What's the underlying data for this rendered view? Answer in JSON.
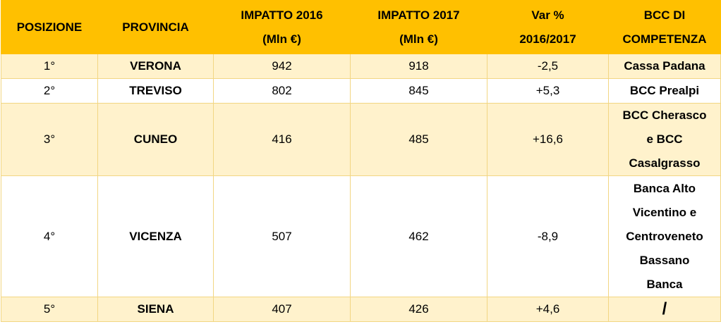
{
  "header": {
    "posizione": "POSIZIONE",
    "provincia": "PROVINCIA",
    "impatto2016_line1": "IMPATTO 2016",
    "impatto2016_line2": "(Mln €)",
    "impatto2017_line1": "IMPATTO 2017",
    "impatto2017_line2": "(Mln €)",
    "var_line1": "Var %",
    "var_line2": "2016/2017",
    "bcc_line1": "BCC DI",
    "bcc_line2": "COMPETENZA"
  },
  "rows": [
    {
      "pos": "1°",
      "provincia": "VERONA",
      "i2016": "942",
      "i2017": "918",
      "var": "-2,5",
      "bcc": [
        "Cassa Padana"
      ]
    },
    {
      "pos": "2°",
      "provincia": "TREVISO",
      "i2016": "802",
      "i2017": "845",
      "var": "+5,3",
      "bcc": [
        "BCC Prealpi"
      ]
    },
    {
      "pos": "3°",
      "provincia": "CUNEO",
      "i2016": "416",
      "i2017": "485",
      "var": "+16,6",
      "bcc": [
        "BCC Cherasco",
        "e BCC",
        "Casalgrasso"
      ]
    },
    {
      "pos": "4°",
      "provincia": "VICENZA",
      "i2016": "507",
      "i2017": "462",
      "var": "-8,9",
      "bcc": [
        "Banca Alto",
        "Vicentino e",
        "Centroveneto",
        "Bassano",
        "Banca"
      ]
    },
    {
      "pos": "5°",
      "provincia": "SIENA",
      "i2016": "407",
      "i2017": "426",
      "var": "+4,6",
      "bcc": [
        "/"
      ]
    }
  ],
  "colors": {
    "header_bg": "#ffc000",
    "row_shaded": "#fff2cc",
    "row_plain": "#ffffff"
  }
}
